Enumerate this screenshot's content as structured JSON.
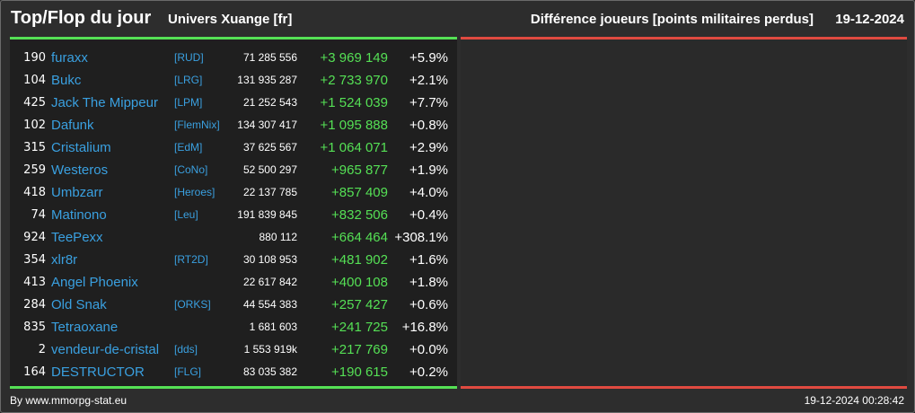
{
  "header": {
    "title": "Top/Flop du jour",
    "universe": "Univers Xuange [fr]",
    "description": "Différence joueurs [points militaires perdus]",
    "date": "19-12-2024"
  },
  "colors": {
    "top_accent": "#55e055",
    "flop_accent": "#e04a40",
    "link": "#3aa0e0"
  },
  "top_rows": [
    {
      "rank": "190",
      "name": "furaxx",
      "alliance": "[RUD]",
      "points": "71 285 556",
      "diff": "+3 969 149",
      "pct": "+5.9%"
    },
    {
      "rank": "104",
      "name": "Bukc",
      "alliance": "[LRG]",
      "points": "131 935 287",
      "diff": "+2 733 970",
      "pct": "+2.1%"
    },
    {
      "rank": "425",
      "name": "Jack The Mippeur",
      "alliance": "[LPM]",
      "points": "21 252 543",
      "diff": "+1 524 039",
      "pct": "+7.7%"
    },
    {
      "rank": "102",
      "name": "Dafunk",
      "alliance": "[FlemNix]",
      "points": "134 307 417",
      "diff": "+1 095 888",
      "pct": "+0.8%"
    },
    {
      "rank": "315",
      "name": "Cristalium",
      "alliance": "[EdM]",
      "points": "37 625 567",
      "diff": "+1 064 071",
      "pct": "+2.9%"
    },
    {
      "rank": "259",
      "name": "Westeros",
      "alliance": "[CoNo]",
      "points": "52 500 297",
      "diff": "+965 877",
      "pct": "+1.9%"
    },
    {
      "rank": "418",
      "name": "Umbzarr",
      "alliance": "[Heroes]",
      "points": "22 137 785",
      "diff": "+857 409",
      "pct": "+4.0%"
    },
    {
      "rank": "74",
      "name": "Matinono",
      "alliance": "[Leu]",
      "points": "191 839 845",
      "diff": "+832 506",
      "pct": "+0.4%"
    },
    {
      "rank": "924",
      "name": "TeePexx",
      "alliance": "",
      "points": "880 112",
      "diff": "+664 464",
      "pct": "+308.1%"
    },
    {
      "rank": "354",
      "name": "xlr8r",
      "alliance": "[RT2D]",
      "points": "30 108 953",
      "diff": "+481 902",
      "pct": "+1.6%"
    },
    {
      "rank": "413",
      "name": "Angel Phoenix",
      "alliance": "",
      "points": "22 617 842",
      "diff": "+400 108",
      "pct": "+1.8%"
    },
    {
      "rank": "284",
      "name": "Old Snak",
      "alliance": "[ORKS]",
      "points": "44 554 383",
      "diff": "+257 427",
      "pct": "+0.6%"
    },
    {
      "rank": "835",
      "name": "Tetraoxane",
      "alliance": "",
      "points": "1 681 603",
      "diff": "+241 725",
      "pct": "+16.8%"
    },
    {
      "rank": "2",
      "name": "vendeur-de-cristal",
      "alliance": "[dds]",
      "points": "1 553 919k",
      "diff": "+217 769",
      "pct": "+0.0%"
    },
    {
      "rank": "164",
      "name": "DESTRUCTOR",
      "alliance": "[FLG]",
      "points": "83 035 382",
      "diff": "+190 615",
      "pct": "+0.2%"
    }
  ],
  "footer": {
    "credit": "By www.mmorpg-stat.eu",
    "timestamp": "19-12-2024 00:28:42"
  }
}
